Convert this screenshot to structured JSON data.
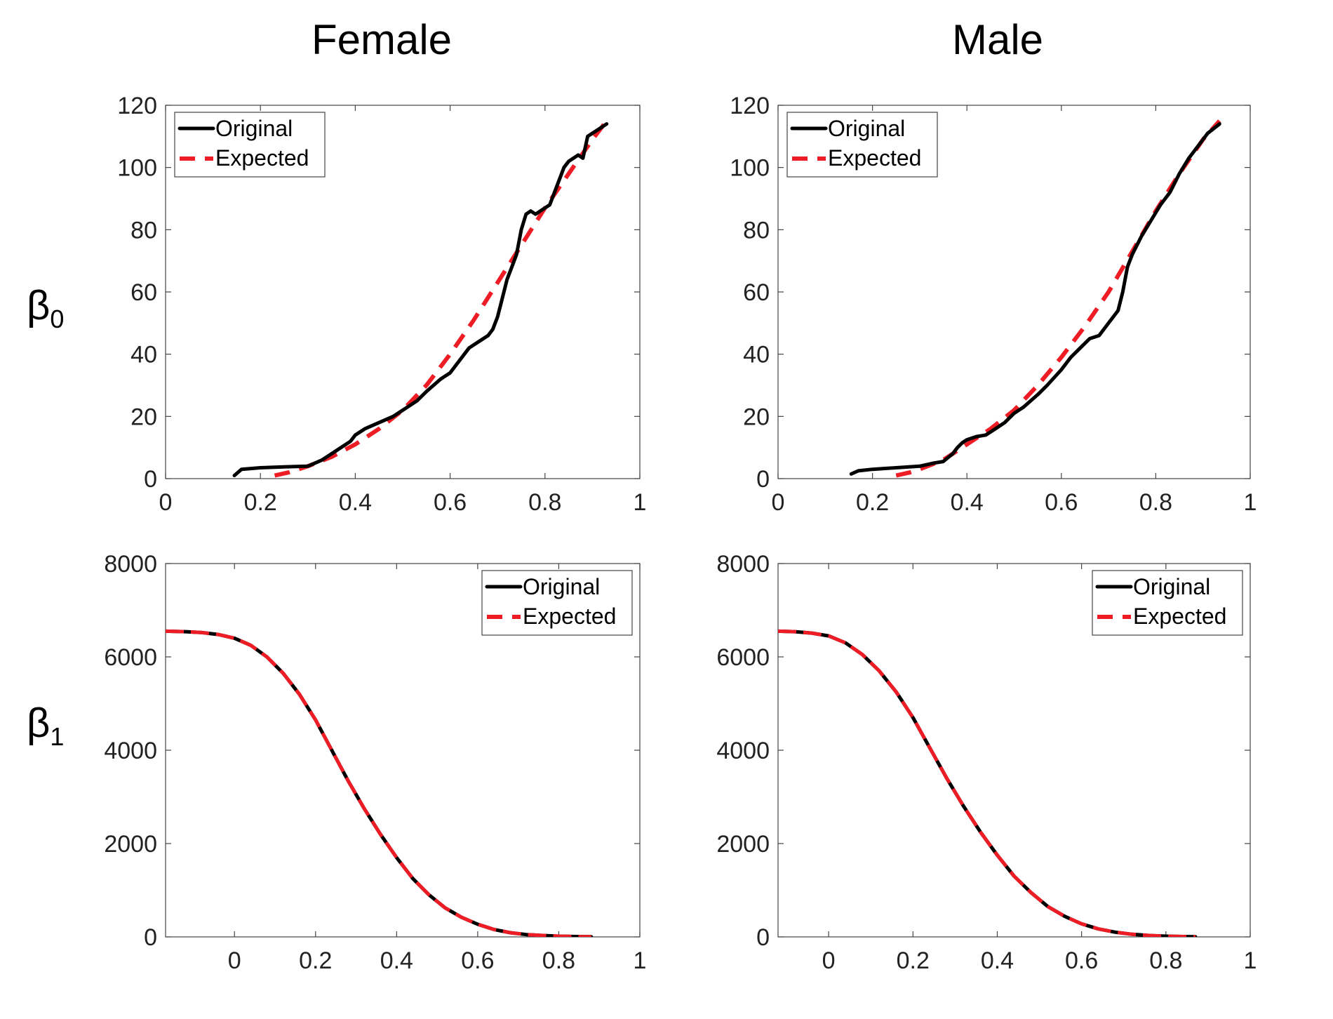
{
  "figure": {
    "column_titles": [
      "Female",
      "Male"
    ],
    "row_labels": [
      {
        "symbol": "β",
        "subscript": "0"
      },
      {
        "symbol": "β",
        "subscript": "1"
      }
    ]
  },
  "colors": {
    "original": "#000000",
    "expected": "#ee1c25"
  },
  "chart_data": [
    {
      "id": "beta0-female",
      "type": "line",
      "title": "",
      "xlabel": "",
      "ylabel": "",
      "xlim": [
        0,
        1
      ],
      "ylim": [
        0,
        120
      ],
      "xticks": [
        0,
        0.2,
        0.4,
        0.6,
        0.8,
        1
      ],
      "xtick_labels": [
        "0",
        "0.2",
        "0.4",
        "0.6",
        "0.8",
        "1"
      ],
      "yticks": [
        0,
        20,
        40,
        60,
        80,
        100,
        120
      ],
      "ytick_labels": [
        "0",
        "20",
        "40",
        "60",
        "80",
        "100",
        "120"
      ],
      "legend": {
        "position": "top-left",
        "entries": [
          "Original",
          "Expected"
        ]
      },
      "series": [
        {
          "name": "Original",
          "style": "solid",
          "x": [
            0.145,
            0.16,
            0.2,
            0.25,
            0.3,
            0.33,
            0.36,
            0.39,
            0.4,
            0.42,
            0.45,
            0.48,
            0.5,
            0.53,
            0.55,
            0.58,
            0.6,
            0.62,
            0.64,
            0.66,
            0.68,
            0.69,
            0.7,
            0.71,
            0.72,
            0.73,
            0.74,
            0.75,
            0.76,
            0.77,
            0.78,
            0.8,
            0.81,
            0.82,
            0.83,
            0.84,
            0.85,
            0.86,
            0.87,
            0.88,
            0.89,
            0.9,
            0.91,
            0.93
          ],
          "y": [
            1,
            3,
            3.5,
            3.8,
            4,
            6,
            9,
            12,
            14,
            16,
            18,
            20,
            22,
            25,
            28,
            32,
            34,
            38,
            42,
            44,
            46,
            48,
            52,
            58,
            64,
            68,
            72,
            80,
            85,
            86,
            85,
            87,
            88,
            92,
            96,
            100,
            102,
            103,
            104,
            103,
            110,
            111,
            112,
            114
          ]
        },
        {
          "name": "Expected",
          "style": "dashed",
          "x": [
            0.23,
            0.26,
            0.3,
            0.35,
            0.4,
            0.45,
            0.5,
            0.55,
            0.6,
            0.65,
            0.7,
            0.75,
            0.8,
            0.85,
            0.9,
            0.93
          ],
          "y": [
            1,
            2,
            4,
            7,
            11,
            16,
            22,
            30,
            40,
            51,
            63,
            75,
            87,
            98,
            109,
            115
          ]
        }
      ]
    },
    {
      "id": "beta0-male",
      "type": "line",
      "title": "",
      "xlabel": "",
      "ylabel": "",
      "xlim": [
        0,
        1
      ],
      "ylim": [
        0,
        120
      ],
      "xticks": [
        0,
        0.2,
        0.4,
        0.6,
        0.8,
        1
      ],
      "xtick_labels": [
        "0",
        "0.2",
        "0.4",
        "0.6",
        "0.8",
        "1"
      ],
      "yticks": [
        0,
        20,
        40,
        60,
        80,
        100,
        120
      ],
      "ytick_labels": [
        "0",
        "20",
        "40",
        "60",
        "80",
        "100",
        "120"
      ],
      "legend": {
        "position": "top-left",
        "entries": [
          "Original",
          "Expected"
        ]
      },
      "series": [
        {
          "name": "Original",
          "style": "solid",
          "x": [
            0.155,
            0.17,
            0.2,
            0.25,
            0.3,
            0.33,
            0.35,
            0.37,
            0.38,
            0.39,
            0.4,
            0.42,
            0.44,
            0.46,
            0.48,
            0.5,
            0.52,
            0.55,
            0.57,
            0.6,
            0.62,
            0.64,
            0.66,
            0.68,
            0.7,
            0.72,
            0.73,
            0.74,
            0.75,
            0.77,
            0.79,
            0.81,
            0.83,
            0.85,
            0.87,
            0.89,
            0.91,
            0.935
          ],
          "y": [
            1.5,
            2.5,
            3,
            3.5,
            4,
            5,
            5.5,
            8,
            10,
            11.5,
            12.5,
            13.5,
            14,
            16,
            18,
            21,
            23,
            27,
            30,
            35,
            39,
            42,
            45,
            46,
            50,
            54,
            60,
            68,
            72,
            78,
            83,
            88,
            92,
            98,
            103,
            107,
            111,
            114
          ]
        },
        {
          "name": "Expected",
          "style": "dashed",
          "x": [
            0.25,
            0.28,
            0.3,
            0.35,
            0.4,
            0.45,
            0.5,
            0.55,
            0.6,
            0.65,
            0.7,
            0.75,
            0.8,
            0.85,
            0.9,
            0.935
          ],
          "y": [
            1,
            2,
            3,
            6,
            11,
            16,
            22,
            30,
            39,
            49,
            60,
            73,
            86,
            98,
            109,
            115
          ]
        }
      ]
    },
    {
      "id": "beta1-female",
      "type": "line",
      "title": "",
      "xlabel": "",
      "ylabel": "",
      "xlim": [
        -0.17,
        1
      ],
      "ylim": [
        0,
        8000
      ],
      "xticks": [
        0,
        0.2,
        0.4,
        0.6,
        0.8,
        1
      ],
      "xtick_labels": [
        "0",
        "0.2",
        "0.4",
        "0.6",
        "0.8",
        "1"
      ],
      "yticks": [
        0,
        2000,
        4000,
        6000,
        8000
      ],
      "ytick_labels": [
        "0",
        "2000",
        "4000",
        "6000",
        "8000"
      ],
      "legend": {
        "position": "top-right",
        "entries": [
          "Original",
          "Expected"
        ]
      },
      "series": [
        {
          "name": "Original",
          "style": "solid",
          "x": [
            -0.17,
            -0.12,
            -0.08,
            -0.04,
            0,
            0.04,
            0.08,
            0.12,
            0.16,
            0.2,
            0.24,
            0.28,
            0.32,
            0.36,
            0.4,
            0.44,
            0.48,
            0.52,
            0.56,
            0.6,
            0.64,
            0.68,
            0.72,
            0.76,
            0.8,
            0.84,
            0.88
          ],
          "y": [
            6550,
            6540,
            6520,
            6480,
            6400,
            6250,
            6000,
            5650,
            5200,
            4650,
            4000,
            3350,
            2750,
            2200,
            1700,
            1250,
            900,
            620,
            420,
            270,
            160,
            90,
            50,
            30,
            15,
            8,
            3
          ]
        },
        {
          "name": "Expected",
          "style": "dashed",
          "x": [
            -0.17,
            -0.12,
            -0.08,
            -0.04,
            0,
            0.04,
            0.08,
            0.12,
            0.16,
            0.2,
            0.24,
            0.28,
            0.32,
            0.36,
            0.4,
            0.44,
            0.48,
            0.52,
            0.56,
            0.6,
            0.64,
            0.68,
            0.72,
            0.76,
            0.8,
            0.84,
            0.88
          ],
          "y": [
            6550,
            6540,
            6520,
            6480,
            6400,
            6250,
            6000,
            5650,
            5200,
            4650,
            4000,
            3350,
            2750,
            2200,
            1700,
            1250,
            900,
            620,
            420,
            270,
            160,
            90,
            50,
            30,
            15,
            8,
            3
          ]
        }
      ]
    },
    {
      "id": "beta1-male",
      "type": "line",
      "title": "",
      "xlabel": "",
      "ylabel": "",
      "xlim": [
        -0.12,
        1
      ],
      "ylim": [
        0,
        8000
      ],
      "xticks": [
        0,
        0.2,
        0.4,
        0.6,
        0.8,
        1
      ],
      "xtick_labels": [
        "0",
        "0.2",
        "0.4",
        "0.6",
        "0.8",
        "1"
      ],
      "yticks": [
        0,
        2000,
        4000,
        6000,
        8000
      ],
      "ytick_labels": [
        "0",
        "2000",
        "4000",
        "6000",
        "8000"
      ],
      "legend": {
        "position": "top-right",
        "entries": [
          "Original",
          "Expected"
        ]
      },
      "series": [
        {
          "name": "Original",
          "style": "solid",
          "x": [
            -0.12,
            -0.08,
            -0.04,
            0,
            0.04,
            0.08,
            0.12,
            0.16,
            0.2,
            0.24,
            0.28,
            0.32,
            0.36,
            0.4,
            0.44,
            0.48,
            0.52,
            0.56,
            0.6,
            0.64,
            0.68,
            0.72,
            0.76,
            0.8,
            0.84,
            0.87
          ],
          "y": [
            6550,
            6540,
            6510,
            6450,
            6300,
            6050,
            5700,
            5250,
            4700,
            4050,
            3400,
            2800,
            2250,
            1750,
            1300,
            950,
            650,
            440,
            280,
            170,
            100,
            55,
            30,
            15,
            8,
            3
          ]
        },
        {
          "name": "Expected",
          "style": "dashed",
          "x": [
            -0.12,
            -0.08,
            -0.04,
            0,
            0.04,
            0.08,
            0.12,
            0.16,
            0.2,
            0.24,
            0.28,
            0.32,
            0.36,
            0.4,
            0.44,
            0.48,
            0.52,
            0.56,
            0.6,
            0.64,
            0.68,
            0.72,
            0.76,
            0.8,
            0.84,
            0.87
          ],
          "y": [
            6550,
            6540,
            6510,
            6450,
            6300,
            6050,
            5700,
            5250,
            4700,
            4050,
            3400,
            2800,
            2250,
            1750,
            1300,
            950,
            650,
            440,
            280,
            170,
            100,
            55,
            30,
            15,
            8,
            3
          ]
        }
      ]
    }
  ]
}
